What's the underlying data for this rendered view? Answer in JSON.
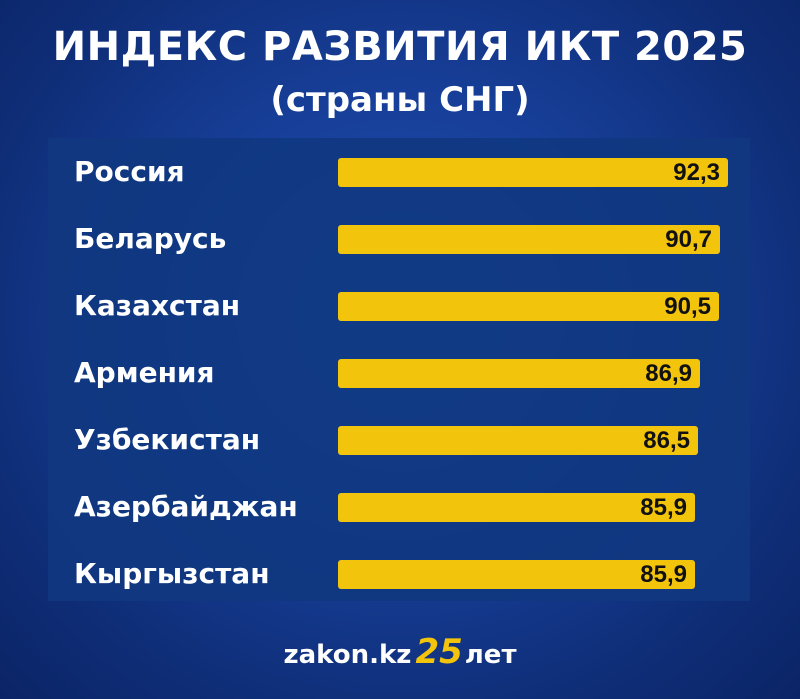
{
  "title": "ИНДЕКС РАЗВИТИЯ ИКТ 2025",
  "subtitle": "(страны СНГ)",
  "footer": {
    "site": "zakon.kz",
    "anniversary_number": "25",
    "anniversary_suffix": "лет"
  },
  "colors": {
    "bar": "#f2c40c",
    "background": "#173f99",
    "panel": "#103880",
    "text": "#ffffff"
  },
  "chart_data": {
    "type": "bar",
    "orientation": "horizontal",
    "categories": [
      "Россия",
      "Беларусь",
      "Казахстан",
      "Армения",
      "Узбекистан",
      "Азербайджан",
      "Кыргызстан"
    ],
    "values": [
      92.3,
      90.7,
      90.5,
      86.9,
      86.5,
      85.9,
      85.9
    ],
    "value_labels": [
      "92,3",
      "90,7",
      "90,5",
      "86,9",
      "86,5",
      "85,9",
      "85,9"
    ],
    "title": "ИНДЕКС РАЗВИТИЯ ИКТ 2025",
    "subtitle": "(страны СНГ)",
    "xlabel": "",
    "ylabel": "",
    "grid": false,
    "legend": "none"
  }
}
